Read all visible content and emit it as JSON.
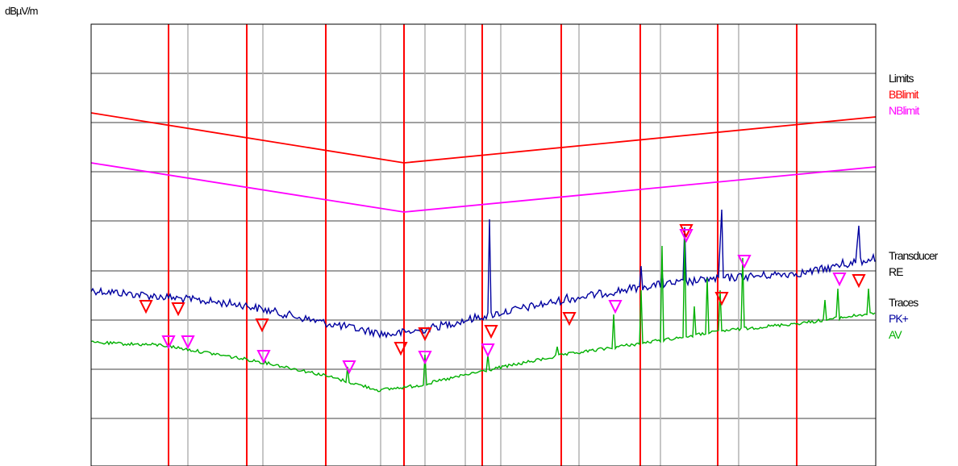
{
  "chart_data": {
    "type": "line",
    "title": "",
    "xlabel": "",
    "ylabel": "dBµV/m",
    "grid": true,
    "x_scale": "log",
    "legend": {
      "groups": [
        {
          "heading": "Limits",
          "items": [
            {
              "label": "BBlimit",
              "color": "#ff0000"
            },
            {
              "label": "NBlimit",
              "color": "#ff00ff"
            }
          ]
        },
        {
          "heading": "Transducer",
          "items": [
            {
              "label": "RE",
              "color": "#000000"
            }
          ]
        },
        {
          "heading": "Traces",
          "items": [
            {
              "label": "PK+",
              "color": "#0000a0"
            },
            {
              "label": "AV",
              "color": "#00b000"
            }
          ]
        }
      ]
    },
    "colors": {
      "bb_limit": "#ff0000",
      "nb_limit": "#ff00ff",
      "pk": "#0000a0",
      "av": "#00b000",
      "decade_grid": "#ff0000",
      "minor_grid": "#b4b4b4",
      "h_grid": "#808080"
    }
  }
}
